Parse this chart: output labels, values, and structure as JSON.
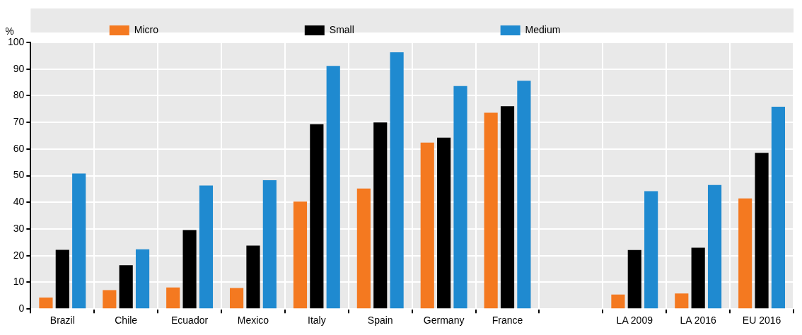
{
  "chart_data": {
    "type": "bar",
    "ylabel": "%",
    "categories": [
      "Brazil",
      "Chile",
      "Ecuador",
      "Mexico",
      "Italy",
      "Spain",
      "Germany",
      "France",
      null,
      "LA 2009",
      "LA 2016",
      "EU 2016"
    ],
    "series": [
      {
        "name": "Micro",
        "color": "#f47920",
        "values": [
          4.3,
          7.1,
          8.1,
          7.9,
          40.3,
          45.2,
          62.4,
          73.6,
          null,
          5.4,
          5.8,
          41.5
        ]
      },
      {
        "name": "Small",
        "color": "#000000",
        "values": [
          22.2,
          16.4,
          29.6,
          23.8,
          69.3,
          70.0,
          64.3,
          76.1,
          null,
          22.1,
          23.0,
          58.6
        ]
      },
      {
        "name": "Medium",
        "color": "#1f8ad0",
        "values": [
          50.8,
          22.4,
          46.3,
          48.3,
          91.2,
          96.3,
          83.6,
          85.6,
          null,
          44.2,
          46.5,
          75.9
        ]
      }
    ],
    "ylim": [
      0,
      100
    ],
    "yticks": [
      0,
      10,
      20,
      30,
      40,
      50,
      60,
      70,
      80,
      90,
      100
    ],
    "grid": true,
    "legend": "top"
  }
}
